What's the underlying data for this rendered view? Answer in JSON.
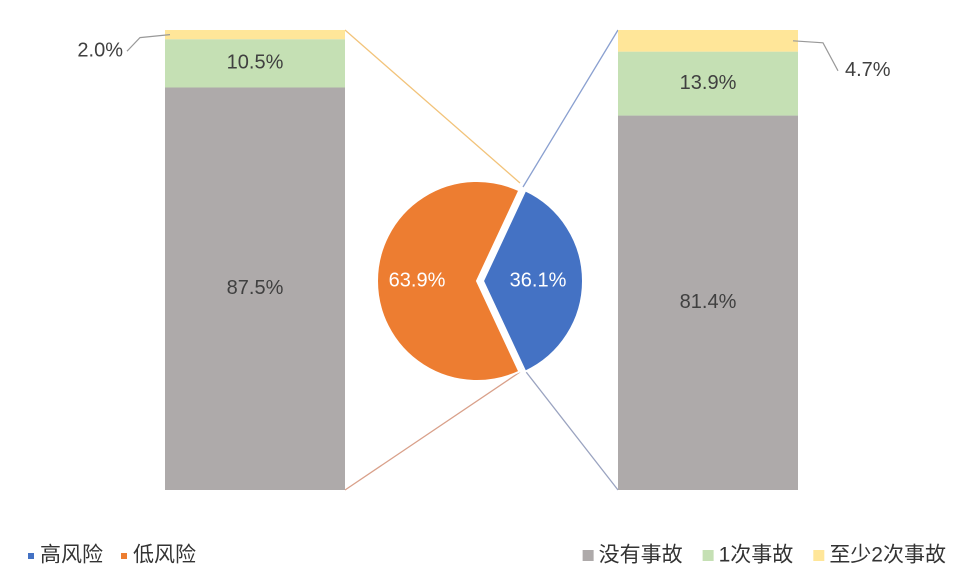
{
  "chart_data": [
    {
      "type": "pie",
      "categories": [
        "高风险",
        "低风险"
      ],
      "values": [
        36.1,
        63.9
      ],
      "value_labels": [
        "36.1%",
        "63.9%"
      ],
      "colors": [
        "#4472c4",
        "#ed7d31"
      ],
      "legend": "bottom-left"
    },
    {
      "type": "bar",
      "stacked": true,
      "categories": [
        null,
        null
      ],
      "ylim": [
        0,
        100
      ],
      "legend": "bottom-right",
      "series": [
        {
          "name": "没有事故",
          "color": "#aeaaaa",
          "values": [
            87.5,
            81.4
          ],
          "value_labels": [
            "87.5%",
            "81.4%"
          ]
        },
        {
          "name": "1次事故",
          "color": "#c5e0b4",
          "values": [
            10.5,
            13.9
          ],
          "value_labels": [
            "10.5%",
            "13.9%"
          ]
        },
        {
          "name": "至少2次事故",
          "color": "#ffe699",
          "values": [
            2.0,
            4.7
          ],
          "value_labels": [
            "2.0%",
            "4.7%"
          ]
        }
      ]
    }
  ]
}
